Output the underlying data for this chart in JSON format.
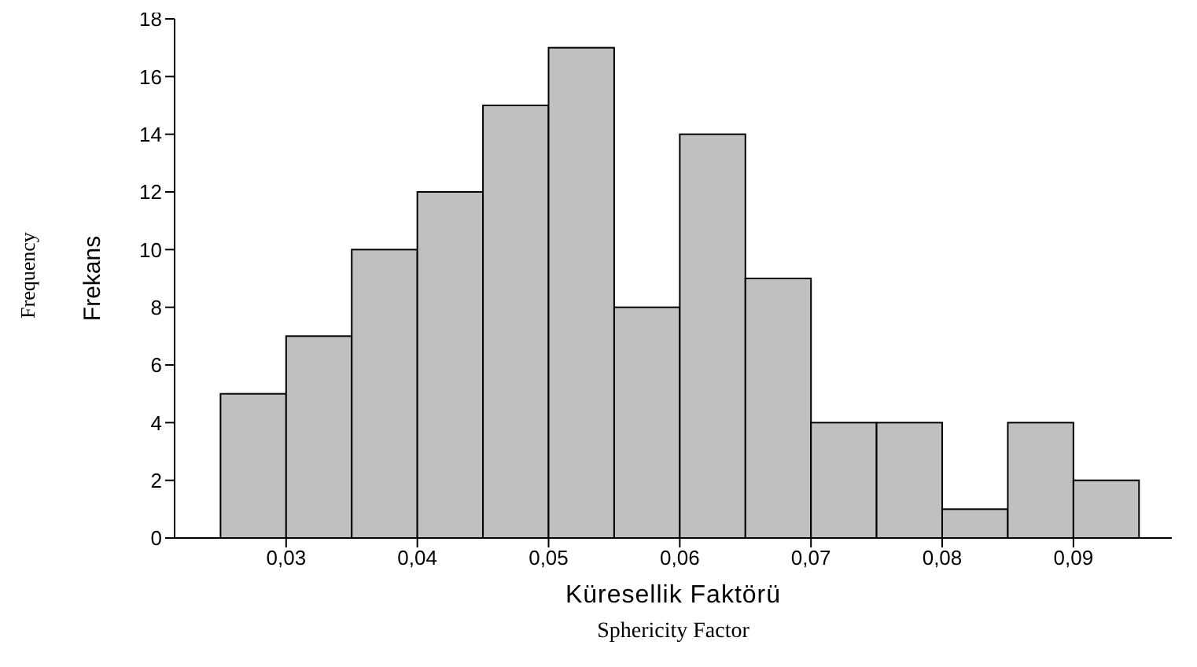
{
  "chart_data": {
    "type": "histogram",
    "xlabel": "Küresellik Faktörü",
    "ylabel": "Frekans",
    "annotations": [
      "Sphericity Factor",
      "Frequency"
    ],
    "bins": [
      0.025,
      0.03,
      0.035,
      0.04,
      0.045,
      0.05,
      0.055,
      0.06,
      0.065,
      0.07,
      0.075,
      0.08,
      0.085,
      0.09,
      0.095
    ],
    "values": [
      5,
      7,
      10,
      12,
      15,
      17,
      8,
      14,
      9,
      4,
      4,
      1,
      4,
      2
    ],
    "color": "#c0c0c0",
    "xlim": [
      0.0215,
      0.0975
    ],
    "xticks": [
      {
        "value": 0.03,
        "label": "0,03"
      },
      {
        "value": 0.04,
        "label": "0,04"
      },
      {
        "value": 0.05,
        "label": "0,05"
      },
      {
        "value": 0.06,
        "label": "0,06"
      },
      {
        "value": 0.07,
        "label": "0,07"
      },
      {
        "value": 0.08,
        "label": "0,08"
      },
      {
        "value": 0.09,
        "label": "0,09"
      }
    ],
    "ylim": [
      0,
      18
    ],
    "yticks": [
      0,
      2,
      4,
      6,
      8,
      10,
      12,
      14,
      16,
      18
    ],
    "grid": false,
    "legend": false
  }
}
